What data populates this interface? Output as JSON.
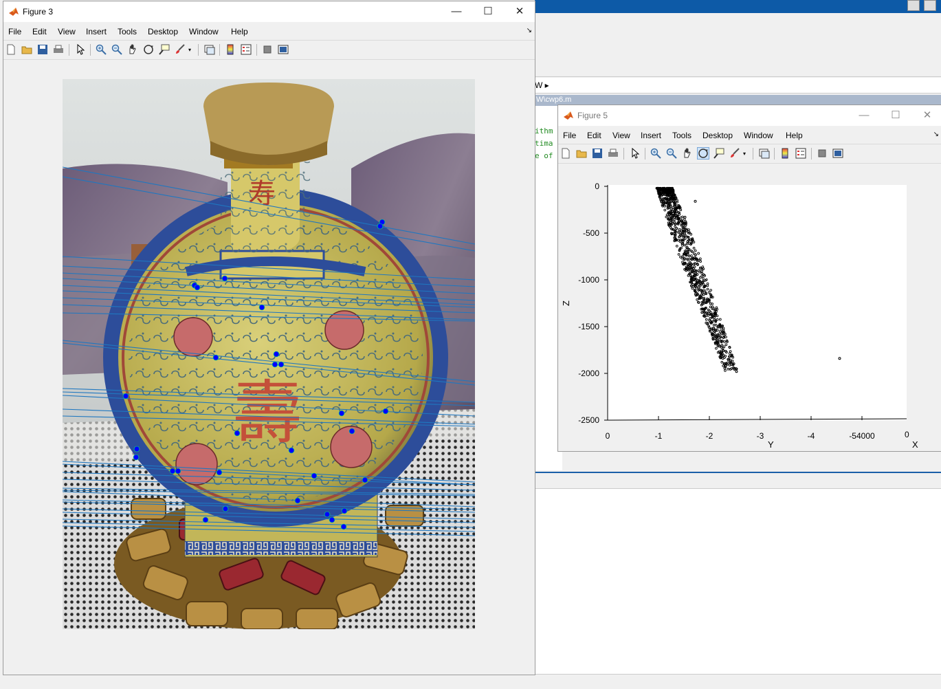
{
  "figure3": {
    "title": "Figure 3",
    "menus": [
      "File",
      "Edit",
      "View",
      "Insert",
      "Tools",
      "Desktop",
      "Window",
      "Help"
    ],
    "window_controls": {
      "minimize": "—",
      "maximize": "☐",
      "close": "✕"
    },
    "toolbar_icons": [
      "new-figure-icon",
      "open-file-icon",
      "save-icon",
      "print-icon",
      "pointer-icon",
      "zoom-in-icon",
      "zoom-out-icon",
      "pan-icon",
      "rotate-3d-icon",
      "data-cursor-icon",
      "brush-icon",
      "brush-dropdown-icon",
      "link-plot-icon",
      "colorbar-icon",
      "legend-icon",
      "hide-plot-tools-icon",
      "show-plot-tools-icon"
    ]
  },
  "figure5": {
    "title": "Figure 5",
    "menus": [
      "File",
      "Edit",
      "View",
      "Insert",
      "Tools",
      "Desktop",
      "Window",
      "Help"
    ],
    "window_controls": {
      "minimize": "—",
      "maximize": "☐",
      "close": "✕"
    }
  },
  "background": {
    "path_tail": "W ▸",
    "file_tab": "W\\cwp6.m",
    "code_lines": [
      "ithm",
      "tima",
      "e of"
    ]
  },
  "colors": {
    "epipolar_line": "#1f77c0",
    "keypoint": "#0000ff",
    "scatter_point": "#000000",
    "matlab_blue": "#0d5aa7"
  },
  "chart_data": {
    "type": "scatter",
    "xlabel": "Y",
    "ylabel": "Z",
    "xlabel2": "X",
    "x_ticks": [
      "0",
      "-1",
      "-2",
      "-3",
      "-4",
      "-54000"
    ],
    "x2_ticks": [
      "0"
    ],
    "y_ticks": [
      "0",
      "-500",
      "-1000",
      "-1500",
      "-2000",
      "-2500"
    ],
    "xlim": [
      0,
      -5.8
    ],
    "ylim": [
      -2500,
      0
    ],
    "grid": false,
    "cluster": {
      "y_range": [
        -1.05,
        -2.5
      ],
      "z_range": [
        -20,
        -1980
      ],
      "approx_points": 900
    },
    "outliers": [
      {
        "y": -4.5,
        "z": -1840
      },
      {
        "y": -1.5,
        "z": -330
      },
      {
        "y": -1.7,
        "z": -160
      },
      {
        "y": -2.5,
        "z": -1980
      }
    ]
  }
}
